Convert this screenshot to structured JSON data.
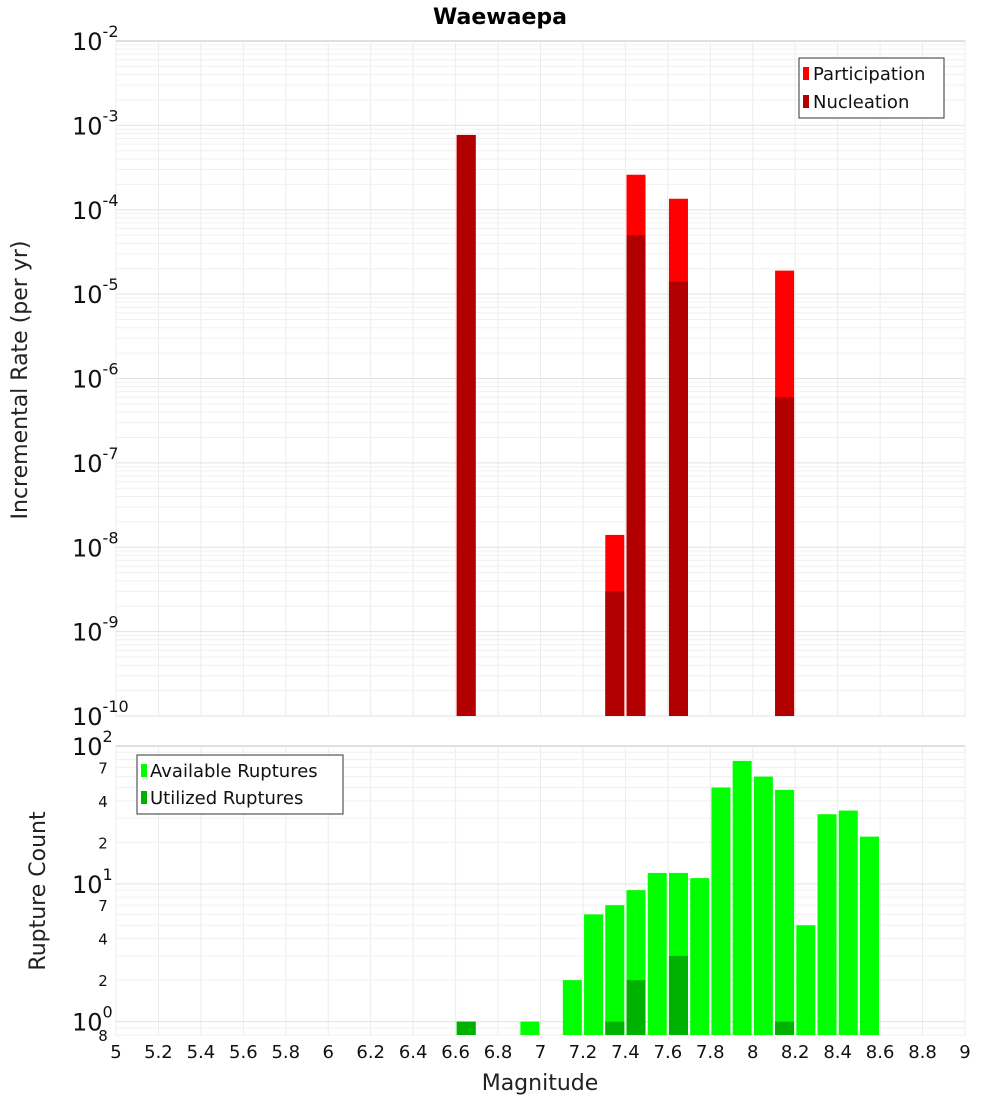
{
  "chart_data": [
    {
      "type": "bar",
      "title": "Waewaepa",
      "xlabel": "",
      "ylabel": "Incremental Rate (per yr)",
      "yscale": "log",
      "xlim": [
        5,
        9
      ],
      "ylim": [
        1e-10,
        0.01
      ],
      "ytick_labels": [
        {
          "base": "10",
          "exp": "-10"
        },
        {
          "base": "10",
          "exp": "-9"
        },
        {
          "base": "10",
          "exp": "-8"
        },
        {
          "base": "10",
          "exp": "-7"
        },
        {
          "base": "10",
          "exp": "-6"
        },
        {
          "base": "10",
          "exp": "-5"
        },
        {
          "base": "10",
          "exp": "-4"
        },
        {
          "base": "10",
          "exp": "-3"
        },
        {
          "base": "10",
          "exp": "-2"
        }
      ],
      "grid": true,
      "legend_position": "top-right",
      "series": [
        {
          "name": "Participation",
          "color": "#ff0000",
          "points": [
            {
              "x": 6.65,
              "y": 0.00077
            },
            {
              "x": 7.35,
              "y": 1.4e-08
            },
            {
              "x": 7.45,
              "y": 0.00026
            },
            {
              "x": 7.65,
              "y": 0.000135
            },
            {
              "x": 8.15,
              "y": 1.9e-05
            }
          ]
        },
        {
          "name": "Nucleation",
          "color": "#b20000",
          "points": [
            {
              "x": 6.65,
              "y": 0.00077
            },
            {
              "x": 7.35,
              "y": 3e-09
            },
            {
              "x": 7.45,
              "y": 5e-05
            },
            {
              "x": 7.65,
              "y": 1.4e-05
            },
            {
              "x": 8.15,
              "y": 6e-07
            }
          ]
        }
      ]
    },
    {
      "type": "bar",
      "title": "",
      "xlabel": "Magnitude",
      "ylabel": "Rupture Count",
      "yscale": "log",
      "xlim": [
        5,
        9
      ],
      "ylim": [
        0.8,
        100
      ],
      "x_ticks": [
        "5",
        "5.2",
        "5.4",
        "5.6",
        "5.8",
        "6",
        "6.2",
        "6.4",
        "6.6",
        "6.8",
        "7",
        "7.2",
        "7.4",
        "7.6",
        "7.8",
        "8",
        "8.2",
        "8.4",
        "8.6",
        "8.8",
        "9"
      ],
      "ytick_labels": [
        {
          "value": 1,
          "base": "10",
          "exp": "0"
        },
        {
          "value": 10,
          "base": "10",
          "exp": "1"
        },
        {
          "value": 100,
          "base": "10",
          "exp": "2"
        }
      ],
      "minor_tick_labels": [
        {
          "value": 0.8,
          "label": "8"
        },
        {
          "value": 2,
          "label": "2"
        },
        {
          "value": 4,
          "label": "4"
        },
        {
          "value": 7,
          "label": "7"
        },
        {
          "value": 20,
          "label": "2"
        },
        {
          "value": 40,
          "label": "4"
        },
        {
          "value": 70,
          "label": "7"
        }
      ],
      "grid": true,
      "legend_position": "top-left",
      "series": [
        {
          "name": "Available Ruptures",
          "color": "#00ff00",
          "points": [
            {
              "x": 6.65,
              "y": 1
            },
            {
              "x": 6.95,
              "y": 1
            },
            {
              "x": 7.15,
              "y": 2
            },
            {
              "x": 7.25,
              "y": 6
            },
            {
              "x": 7.35,
              "y": 7
            },
            {
              "x": 7.45,
              "y": 9
            },
            {
              "x": 7.55,
              "y": 12
            },
            {
              "x": 7.65,
              "y": 12
            },
            {
              "x": 7.75,
              "y": 11
            },
            {
              "x": 7.85,
              "y": 50
            },
            {
              "x": 7.95,
              "y": 78
            },
            {
              "x": 8.05,
              "y": 60
            },
            {
              "x": 8.15,
              "y": 48
            },
            {
              "x": 8.25,
              "y": 5
            },
            {
              "x": 8.35,
              "y": 32
            },
            {
              "x": 8.45,
              "y": 34
            },
            {
              "x": 8.55,
              "y": 22
            }
          ]
        },
        {
          "name": "Utilized Ruptures",
          "color": "#00b200",
          "points": [
            {
              "x": 6.65,
              "y": 1
            },
            {
              "x": 7.35,
              "y": 1
            },
            {
              "x": 7.45,
              "y": 2
            },
            {
              "x": 7.65,
              "y": 3
            },
            {
              "x": 8.15,
              "y": 1
            }
          ]
        }
      ]
    }
  ]
}
